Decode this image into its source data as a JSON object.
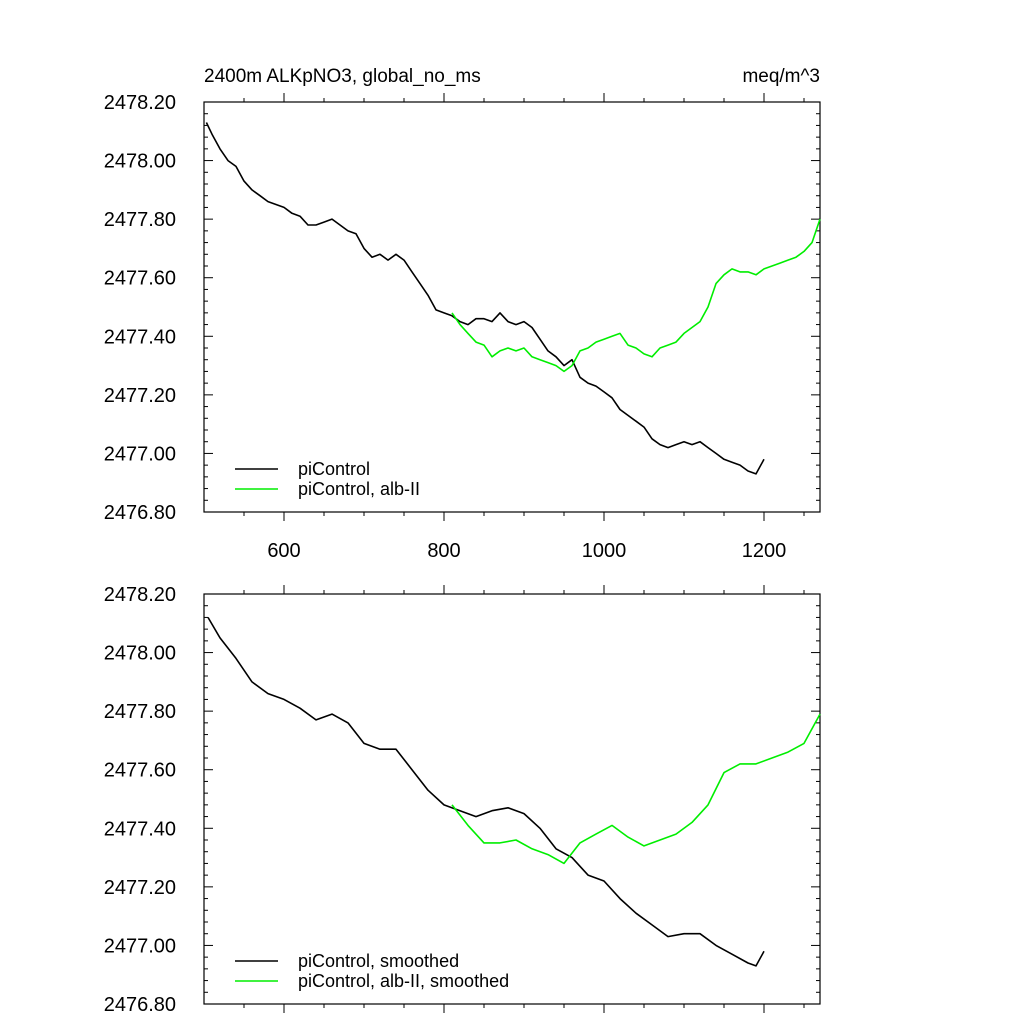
{
  "header": {
    "title": "2400m ALKpNO3, global_no_ms",
    "units": "meq/m^3"
  },
  "colors": {
    "picontrol": "#000000",
    "albII": "#00ee00"
  },
  "chart_data": [
    {
      "type": "line",
      "xlim": [
        500,
        1270
      ],
      "ylim": [
        2476.8,
        2478.2
      ],
      "xticks": [
        600,
        800,
        1000,
        1200
      ],
      "xtick_labels": [
        "600",
        "800",
        "1000",
        "1200"
      ],
      "yticks": [
        2476.8,
        2477.0,
        2477.2,
        2477.4,
        2477.6,
        2477.8,
        2478.0,
        2478.2
      ],
      "ytick_labels": [
        "2476.80",
        "2477.00",
        "2477.20",
        "2477.40",
        "2477.60",
        "2477.80",
        "2478.00",
        "2478.20"
      ],
      "legend_position": "bottom-left",
      "series": [
        {
          "name": "piControl",
          "color": "#000000",
          "x": [
            503,
            510,
            520,
            530,
            540,
            550,
            560,
            570,
            580,
            590,
            600,
            610,
            620,
            630,
            640,
            650,
            660,
            670,
            680,
            690,
            700,
            710,
            720,
            730,
            740,
            750,
            760,
            770,
            780,
            790,
            800,
            810,
            820,
            830,
            840,
            850,
            860,
            870,
            880,
            890,
            900,
            910,
            920,
            930,
            940,
            950,
            960,
            970,
            980,
            990,
            1000,
            1010,
            1020,
            1030,
            1040,
            1050,
            1060,
            1070,
            1080,
            1090,
            1100,
            1110,
            1120,
            1130,
            1140,
            1150,
            1160,
            1170,
            1180,
            1190,
            1200
          ],
          "y": [
            2478.13,
            2478.09,
            2478.04,
            2478.0,
            2477.98,
            2477.93,
            2477.9,
            2477.88,
            2477.86,
            2477.85,
            2477.84,
            2477.82,
            2477.81,
            2477.78,
            2477.78,
            2477.79,
            2477.8,
            2477.78,
            2477.76,
            2477.75,
            2477.7,
            2477.67,
            2477.68,
            2477.66,
            2477.68,
            2477.66,
            2477.62,
            2477.58,
            2477.54,
            2477.49,
            2477.48,
            2477.47,
            2477.45,
            2477.44,
            2477.46,
            2477.46,
            2477.45,
            2477.48,
            2477.45,
            2477.44,
            2477.45,
            2477.43,
            2477.39,
            2477.35,
            2477.33,
            2477.3,
            2477.32,
            2477.26,
            2477.24,
            2477.23,
            2477.21,
            2477.19,
            2477.15,
            2477.13,
            2477.11,
            2477.09,
            2477.05,
            2477.03,
            2477.02,
            2477.03,
            2477.04,
            2477.03,
            2477.04,
            2477.02,
            2477.0,
            2476.98,
            2476.97,
            2476.96,
            2476.94,
            2476.93,
            2476.98
          ]
        },
        {
          "name": "piControl, alb-II",
          "color": "#00ee00",
          "x": [
            810,
            820,
            830,
            840,
            850,
            860,
            870,
            880,
            890,
            900,
            910,
            920,
            930,
            940,
            950,
            960,
            970,
            980,
            990,
            1000,
            1010,
            1020,
            1030,
            1040,
            1050,
            1060,
            1070,
            1080,
            1090,
            1100,
            1110,
            1120,
            1130,
            1140,
            1150,
            1160,
            1170,
            1180,
            1190,
            1200,
            1210,
            1220,
            1230,
            1240,
            1250,
            1260,
            1270
          ],
          "y": [
            2477.48,
            2477.44,
            2477.41,
            2477.38,
            2477.37,
            2477.33,
            2477.35,
            2477.36,
            2477.35,
            2477.36,
            2477.33,
            2477.32,
            2477.31,
            2477.3,
            2477.28,
            2477.3,
            2477.35,
            2477.36,
            2477.38,
            2477.39,
            2477.4,
            2477.41,
            2477.37,
            2477.36,
            2477.34,
            2477.33,
            2477.36,
            2477.37,
            2477.38,
            2477.41,
            2477.43,
            2477.45,
            2477.5,
            2477.58,
            2477.61,
            2477.63,
            2477.62,
            2477.62,
            2477.61,
            2477.63,
            2477.64,
            2477.65,
            2477.66,
            2477.67,
            2477.69,
            2477.72,
            2477.8
          ]
        }
      ]
    },
    {
      "type": "line",
      "xlim": [
        500,
        1270
      ],
      "ylim": [
        2476.8,
        2478.2
      ],
      "xticks": [
        600,
        800,
        1000,
        1200
      ],
      "xtick_labels": [],
      "yticks": [
        2476.8,
        2477.0,
        2477.2,
        2477.4,
        2477.6,
        2477.8,
        2478.0,
        2478.2
      ],
      "ytick_labels": [
        "2476.80",
        "2477.00",
        "2477.20",
        "2477.40",
        "2477.60",
        "2477.80",
        "2478.00",
        "2478.20"
      ],
      "legend_position": "bottom-left",
      "series": [
        {
          "name": "piControl, smoothed",
          "color": "#000000",
          "x": [
            505,
            520,
            540,
            560,
            580,
            600,
            620,
            640,
            660,
            680,
            700,
            720,
            740,
            760,
            780,
            800,
            820,
            840,
            860,
            880,
            900,
            920,
            940,
            960,
            980,
            1000,
            1020,
            1040,
            1060,
            1080,
            1100,
            1120,
            1140,
            1160,
            1180,
            1190,
            1200
          ],
          "y": [
            2478.12,
            2478.05,
            2477.98,
            2477.9,
            2477.86,
            2477.84,
            2477.81,
            2477.77,
            2477.79,
            2477.76,
            2477.69,
            2477.67,
            2477.67,
            2477.6,
            2477.53,
            2477.48,
            2477.46,
            2477.44,
            2477.46,
            2477.47,
            2477.45,
            2477.4,
            2477.33,
            2477.3,
            2477.24,
            2477.22,
            2477.16,
            2477.11,
            2477.07,
            2477.03,
            2477.04,
            2477.04,
            2477.0,
            2476.97,
            2476.94,
            2476.93,
            2476.98
          ]
        },
        {
          "name": "piControl, alb-II, smoothed",
          "color": "#00ee00",
          "x": [
            810,
            830,
            850,
            870,
            890,
            910,
            930,
            950,
            970,
            990,
            1010,
            1030,
            1050,
            1070,
            1090,
            1110,
            1130,
            1150,
            1170,
            1190,
            1210,
            1230,
            1250,
            1270
          ],
          "y": [
            2477.48,
            2477.41,
            2477.35,
            2477.35,
            2477.36,
            2477.33,
            2477.31,
            2477.28,
            2477.35,
            2477.38,
            2477.41,
            2477.37,
            2477.34,
            2477.36,
            2477.38,
            2477.42,
            2477.48,
            2477.59,
            2477.62,
            2477.62,
            2477.64,
            2477.66,
            2477.69,
            2477.79
          ]
        }
      ]
    }
  ]
}
